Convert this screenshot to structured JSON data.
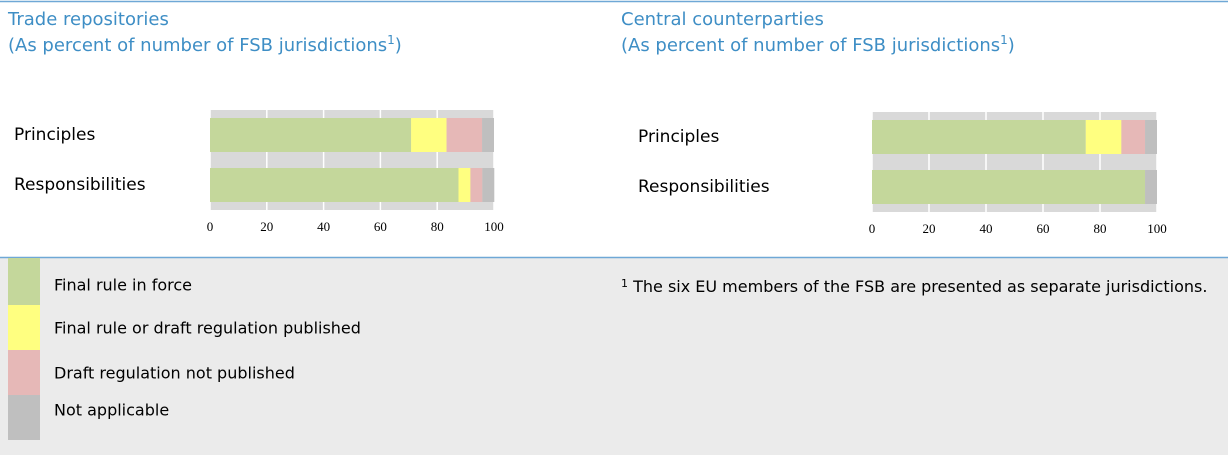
{
  "chart_data": [
    {
      "type": "bar",
      "orientation": "horizontal",
      "stacked": true,
      "title": "Trade repositories",
      "subtitle": [
        "(As percent of number of FSB jurisdictions",
        "1",
        ")"
      ],
      "categories": [
        "Principles",
        "Responsibilities"
      ],
      "series": [
        {
          "name": "Final rule in force",
          "color": "#c4d79b",
          "values": [
            70.8,
            87.5
          ]
        },
        {
          "name": "Final rule or draft regulation published",
          "color": "#ffff80",
          "values": [
            12.5,
            4.2
          ]
        },
        {
          "name": "Draft regulation not published",
          "color": "#e6b8b7",
          "values": [
            12.5,
            4.2
          ]
        },
        {
          "name": "Not applicable",
          "color": "#bfbfbf",
          "values": [
            4.2,
            4.2
          ]
        }
      ],
      "xlim": [
        0,
        100
      ],
      "xticks": [
        0,
        20,
        40,
        60,
        80,
        100
      ],
      "grid": true
    },
    {
      "type": "bar",
      "orientation": "horizontal",
      "stacked": true,
      "title": "Central counterparties",
      "subtitle": [
        "(As percent of number of FSB jurisdictions",
        "1",
        ")"
      ],
      "categories": [
        "Principles",
        "Responsibilities"
      ],
      "series": [
        {
          "name": "Final rule in force",
          "color": "#c4d79b",
          "values": [
            75,
            95.8
          ]
        },
        {
          "name": "Final rule or draft regulation published",
          "color": "#ffff80",
          "values": [
            12.5,
            0
          ]
        },
        {
          "name": "Draft regulation not published",
          "color": "#e6b8b7",
          "values": [
            8.3,
            0
          ]
        },
        {
          "name": "Not applicable",
          "color": "#bfbfbf",
          "values": [
            4.2,
            4.2
          ]
        }
      ],
      "xlim": [
        0,
        100
      ],
      "xticks": [
        0,
        20,
        40,
        60,
        80,
        100
      ],
      "grid": true
    }
  ],
  "footnote": {
    "marker": "1",
    "text": "The six EU members of the FSB are presented as separate jurisdictions."
  }
}
